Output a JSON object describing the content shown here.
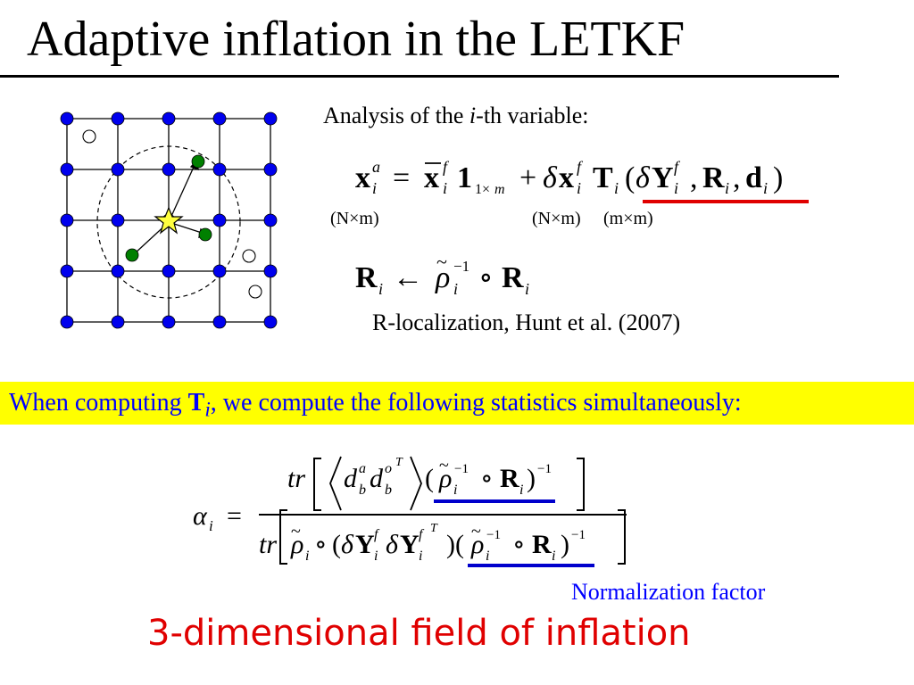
{
  "slide": {
    "title": "Adaptive inflation in the LETKF",
    "caption_prefix": "Analysis of the ",
    "caption_var": "i",
    "caption_suffix": "-th variable:",
    "reference": "R-localization, Hunt et al. (2007)",
    "banner_prefix": "When computing ",
    "banner_symbol": "T",
    "banner_sub": "i",
    "banner_suffix": ", we compute the following statistics simultaneously:",
    "normalization_label": "Normalization factor",
    "headline": "3-dimensional field of inflation"
  },
  "equations": {
    "dim_left": "(N×m)",
    "dim_mid": "(N×m)",
    "dim_right": "(m×m)"
  },
  "colors": {
    "grid_node": "#0000ee",
    "obs_used": "#008000",
    "analysis_point": "#ffff40",
    "underline_red": "#e00000",
    "underline_blue": "#0000cc",
    "banner_bg": "#ffff00",
    "headline": "#e00000"
  },
  "icons": {
    "analysis_point": "star-icon",
    "grid_point": "circle-icon"
  }
}
